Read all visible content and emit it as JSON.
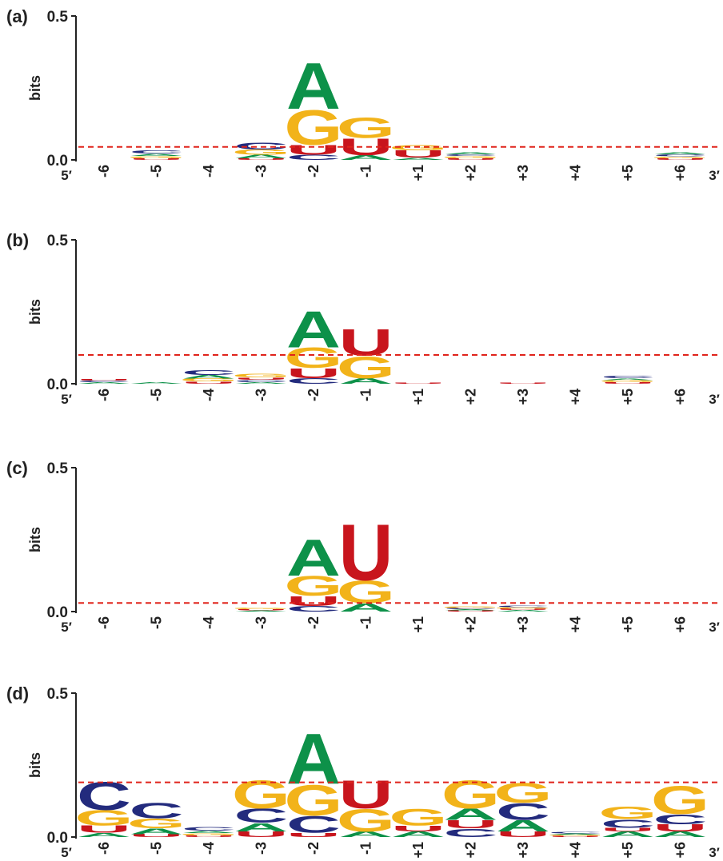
{
  "chart_data": [
    {
      "panel": "(a)",
      "type": "sequence-logo",
      "ylabel": "bits",
      "ylim": [
        0.0,
        0.5
      ],
      "ytick_labels": [
        "0.0",
        "0.5"
      ],
      "threshold": 0.045,
      "x_start_label": "5′",
      "x_end_label": "3′",
      "positions": [
        {
          "label": "-6",
          "letters": []
        },
        {
          "label": "-5",
          "letters": [
            {
              "b": "U",
              "h": 0.006
            },
            {
              "b": "G",
              "h": 0.008
            },
            {
              "b": "A",
              "h": 0.008
            },
            {
              "b": "C",
              "h": 0.01
            }
          ]
        },
        {
          "label": "-4",
          "letters": []
        },
        {
          "label": "-3",
          "letters": [
            {
              "b": "U",
              "h": 0.006
            },
            {
              "b": "A",
              "h": 0.012
            },
            {
              "b": "G",
              "h": 0.018
            },
            {
              "b": "C",
              "h": 0.024
            }
          ]
        },
        {
          "label": "-2",
          "letters": [
            {
              "b": "C",
              "h": 0.018
            },
            {
              "b": "U",
              "h": 0.035
            },
            {
              "b": "G",
              "h": 0.125
            },
            {
              "b": "A",
              "h": 0.165
            }
          ]
        },
        {
          "label": "-1",
          "letters": [
            {
              "b": "A",
              "h": 0.016
            },
            {
              "b": "U",
              "h": 0.06
            },
            {
              "b": "G",
              "h": 0.072
            }
          ]
        },
        {
          "label": "+1",
          "letters": [
            {
              "b": "A",
              "h": 0.008
            },
            {
              "b": "U",
              "h": 0.026
            },
            {
              "b": "G",
              "h": 0.018
            }
          ]
        },
        {
          "label": "+2",
          "letters": [
            {
              "b": "U",
              "h": 0.006
            },
            {
              "b": "G",
              "h": 0.008
            },
            {
              "b": "C",
              "h": 0.006
            },
            {
              "b": "A",
              "h": 0.008
            }
          ]
        },
        {
          "label": "+3",
          "letters": []
        },
        {
          "label": "+4",
          "letters": []
        },
        {
          "label": "+5",
          "letters": []
        },
        {
          "label": "+6",
          "letters": [
            {
              "b": "U",
              "h": 0.006
            },
            {
              "b": "G",
              "h": 0.006
            },
            {
              "b": "C",
              "h": 0.007
            },
            {
              "b": "A",
              "h": 0.008
            }
          ]
        }
      ]
    },
    {
      "panel": "(b)",
      "type": "sequence-logo",
      "ylabel": "bits",
      "ylim": [
        0.0,
        0.5
      ],
      "ytick_labels": [
        "0.0",
        "0.5"
      ],
      "threshold": 0.1,
      "x_start_label": "5′",
      "x_end_label": "3′",
      "positions": [
        {
          "label": "-6",
          "letters": [
            {
              "b": "A",
              "h": 0.005
            },
            {
              "b": "C",
              "h": 0.006
            },
            {
              "b": "U",
              "h": 0.006
            }
          ]
        },
        {
          "label": "-5",
          "letters": [
            {
              "b": "A",
              "h": 0.005
            }
          ]
        },
        {
          "label": "-4",
          "letters": [
            {
              "b": "U",
              "h": 0.008
            },
            {
              "b": "G",
              "h": 0.01
            },
            {
              "b": "A",
              "h": 0.012
            },
            {
              "b": "C",
              "h": 0.016
            }
          ]
        },
        {
          "label": "-3",
          "letters": [
            {
              "b": "A",
              "h": 0.006
            },
            {
              "b": "C",
              "h": 0.008
            },
            {
              "b": "U",
              "h": 0.008
            },
            {
              "b": "G",
              "h": 0.012
            }
          ]
        },
        {
          "label": "-2",
          "letters": [
            {
              "b": "C",
              "h": 0.02
            },
            {
              "b": "U",
              "h": 0.035
            },
            {
              "b": "G",
              "h": 0.072
            },
            {
              "b": "A",
              "h": 0.13
            }
          ]
        },
        {
          "label": "-1",
          "letters": [
            {
              "b": "A",
              "h": 0.02
            },
            {
              "b": "G",
              "h": 0.078
            },
            {
              "b": "U",
              "h": 0.095
            }
          ]
        },
        {
          "label": "+1",
          "letters": [
            {
              "b": "U",
              "h": 0.004
            }
          ]
        },
        {
          "label": "+2",
          "letters": []
        },
        {
          "label": "+3",
          "letters": [
            {
              "b": "U",
              "h": 0.004
            }
          ]
        },
        {
          "label": "+4",
          "letters": []
        },
        {
          "label": "+5",
          "letters": [
            {
              "b": "U",
              "h": 0.006
            },
            {
              "b": "G",
              "h": 0.007
            },
            {
              "b": "A",
              "h": 0.006
            },
            {
              "b": "C",
              "h": 0.009
            }
          ]
        },
        {
          "label": "+6",
          "letters": []
        }
      ]
    },
    {
      "panel": "(c)",
      "type": "sequence-logo",
      "ylabel": "bits",
      "ylim": [
        0.0,
        0.5
      ],
      "ytick_labels": [
        "0.0",
        "0.5"
      ],
      "threshold": 0.03,
      "x_start_label": "5′",
      "x_end_label": "3′",
      "positions": [
        {
          "label": "-6",
          "letters": []
        },
        {
          "label": "-5",
          "letters": []
        },
        {
          "label": "-4",
          "letters": []
        },
        {
          "label": "-3",
          "letters": [
            {
              "b": "A",
              "h": 0.004
            },
            {
              "b": "U",
              "h": 0.004
            },
            {
              "b": "G",
              "h": 0.005
            }
          ]
        },
        {
          "label": "-2",
          "letters": [
            {
              "b": "C",
              "h": 0.02
            },
            {
              "b": "U",
              "h": 0.035
            },
            {
              "b": "G",
              "h": 0.07
            },
            {
              "b": "A",
              "h": 0.13
            }
          ]
        },
        {
          "label": "-1",
          "letters": [
            {
              "b": "A",
              "h": 0.03
            },
            {
              "b": "G",
              "h": 0.08
            },
            {
              "b": "U",
              "h": 0.2
            }
          ]
        },
        {
          "label": "+1",
          "letters": []
        },
        {
          "label": "+2",
          "letters": [
            {
              "b": "U",
              "h": 0.004
            },
            {
              "b": "A",
              "h": 0.004
            },
            {
              "b": "C",
              "h": 0.005
            },
            {
              "b": "G",
              "h": 0.006
            }
          ]
        },
        {
          "label": "+3",
          "letters": [
            {
              "b": "A",
              "h": 0.005
            },
            {
              "b": "U",
              "h": 0.005
            },
            {
              "b": "G",
              "h": 0.005
            },
            {
              "b": "C",
              "h": 0.006
            }
          ]
        },
        {
          "label": "+4",
          "letters": []
        },
        {
          "label": "+5",
          "letters": []
        },
        {
          "label": "+6",
          "letters": []
        }
      ]
    },
    {
      "panel": "(d)",
      "type": "sequence-logo",
      "ylabel": "bits",
      "ylim": [
        0.0,
        0.5
      ],
      "ytick_labels": [
        "0.0",
        "0.5"
      ],
      "threshold": 0.19,
      "x_start_label": "5′",
      "x_end_label": "3′",
      "positions": [
        {
          "label": "-6",
          "letters": [
            {
              "b": "A",
              "h": 0.015
            },
            {
              "b": "U",
              "h": 0.025
            },
            {
              "b": "G",
              "h": 0.055
            },
            {
              "b": "C",
              "h": 0.1
            }
          ]
        },
        {
          "label": "-5",
          "letters": [
            {
              "b": "U",
              "h": 0.01
            },
            {
              "b": "A",
              "h": 0.02
            },
            {
              "b": "G",
              "h": 0.035
            },
            {
              "b": "C",
              "h": 0.055
            }
          ]
        },
        {
          "label": "-4",
          "letters": [
            {
              "b": "U",
              "h": 0.006
            },
            {
              "b": "G",
              "h": 0.008
            },
            {
              "b": "A",
              "h": 0.008
            },
            {
              "b": "C",
              "h": 0.012
            }
          ]
        },
        {
          "label": "-3",
          "letters": [
            {
              "b": "U",
              "h": 0.02
            },
            {
              "b": "A",
              "h": 0.03
            },
            {
              "b": "C",
              "h": 0.05
            },
            {
              "b": "G",
              "h": 0.1
            }
          ]
        },
        {
          "label": "-2",
          "letters": [
            {
              "b": "U",
              "h": 0.015
            },
            {
              "b": "C",
              "h": 0.06
            },
            {
              "b": "G",
              "h": 0.11
            },
            {
              "b": "A",
              "h": 0.18
            }
          ]
        },
        {
          "label": "-1",
          "letters": [
            {
              "b": "A",
              "h": 0.02
            },
            {
              "b": "G",
              "h": 0.08
            },
            {
              "b": "U",
              "h": 0.1
            }
          ]
        },
        {
          "label": "+1",
          "letters": [
            {
              "b": "A",
              "h": 0.02
            },
            {
              "b": "U",
              "h": 0.02
            },
            {
              "b": "G",
              "h": 0.06
            }
          ]
        },
        {
          "label": "+2",
          "letters": [
            {
              "b": "C",
              "h": 0.03
            },
            {
              "b": "U",
              "h": 0.03
            },
            {
              "b": "A",
              "h": 0.04
            },
            {
              "b": "G",
              "h": 0.1
            }
          ]
        },
        {
          "label": "+3",
          "letters": [
            {
              "b": "U",
              "h": 0.02
            },
            {
              "b": "A",
              "h": 0.04
            },
            {
              "b": "C",
              "h": 0.06
            },
            {
              "b": "G",
              "h": 0.07
            }
          ]
        },
        {
          "label": "+4",
          "letters": [
            {
              "b": "U",
              "h": 0.004
            },
            {
              "b": "G",
              "h": 0.004
            },
            {
              "b": "A",
              "h": 0.004
            },
            {
              "b": "C",
              "h": 0.005
            }
          ]
        },
        {
          "label": "+5",
          "letters": [
            {
              "b": "A",
              "h": 0.02
            },
            {
              "b": "U",
              "h": 0.012
            },
            {
              "b": "C",
              "h": 0.03
            },
            {
              "b": "G",
              "h": 0.045
            }
          ]
        },
        {
          "label": "+6",
          "letters": [
            {
              "b": "A",
              "h": 0.02
            },
            {
              "b": "U",
              "h": 0.025
            },
            {
              "b": "C",
              "h": 0.035
            },
            {
              "b": "G",
              "h": 0.1
            }
          ]
        }
      ]
    }
  ],
  "colors": {
    "A": "#0d9149",
    "C": "#232b7d",
    "G": "#f2b31a",
    "U": "#c8151d",
    "threshold": "#e0231b",
    "axis": "#222222"
  }
}
